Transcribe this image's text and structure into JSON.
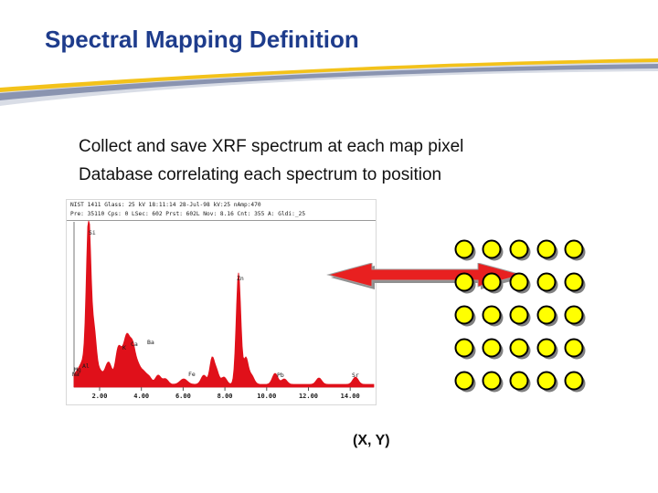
{
  "slide": {
    "title": "Spectral Mapping Definition",
    "bullets": [
      "Collect and save XRF spectrum at each map pixel",
      "Database correlating each spectrum to position"
    ],
    "coordinate_label": "(X, Y)"
  },
  "spectrum": {
    "header_line1": "NIST 1411  Glass: 25 kV   18:11:14  28-Jul-98  kV:25  nAmp:470",
    "header_line2": "Pre: 35110  Cps: 0  LSec: 602  Prst: 602L  Nov: 8.16  Cnt: 355  A: Gldi:_25",
    "peak_labels": [
      "Si",
      "Zn",
      "K",
      "Ca",
      "Ba",
      "Fe",
      "Pb",
      "Sr",
      "Mg",
      "Al",
      "Na"
    ],
    "tick_labels": [
      "2.00",
      "4.00",
      "6.00",
      "8.00",
      "10.00",
      "12.00",
      "14.00"
    ]
  },
  "map": {
    "rows": 5,
    "cols": 5,
    "dot_color": "#ffff00"
  },
  "colors": {
    "title": "#1e3c8c",
    "spectrum": "#e0101a",
    "arrow": "#e82020"
  }
}
